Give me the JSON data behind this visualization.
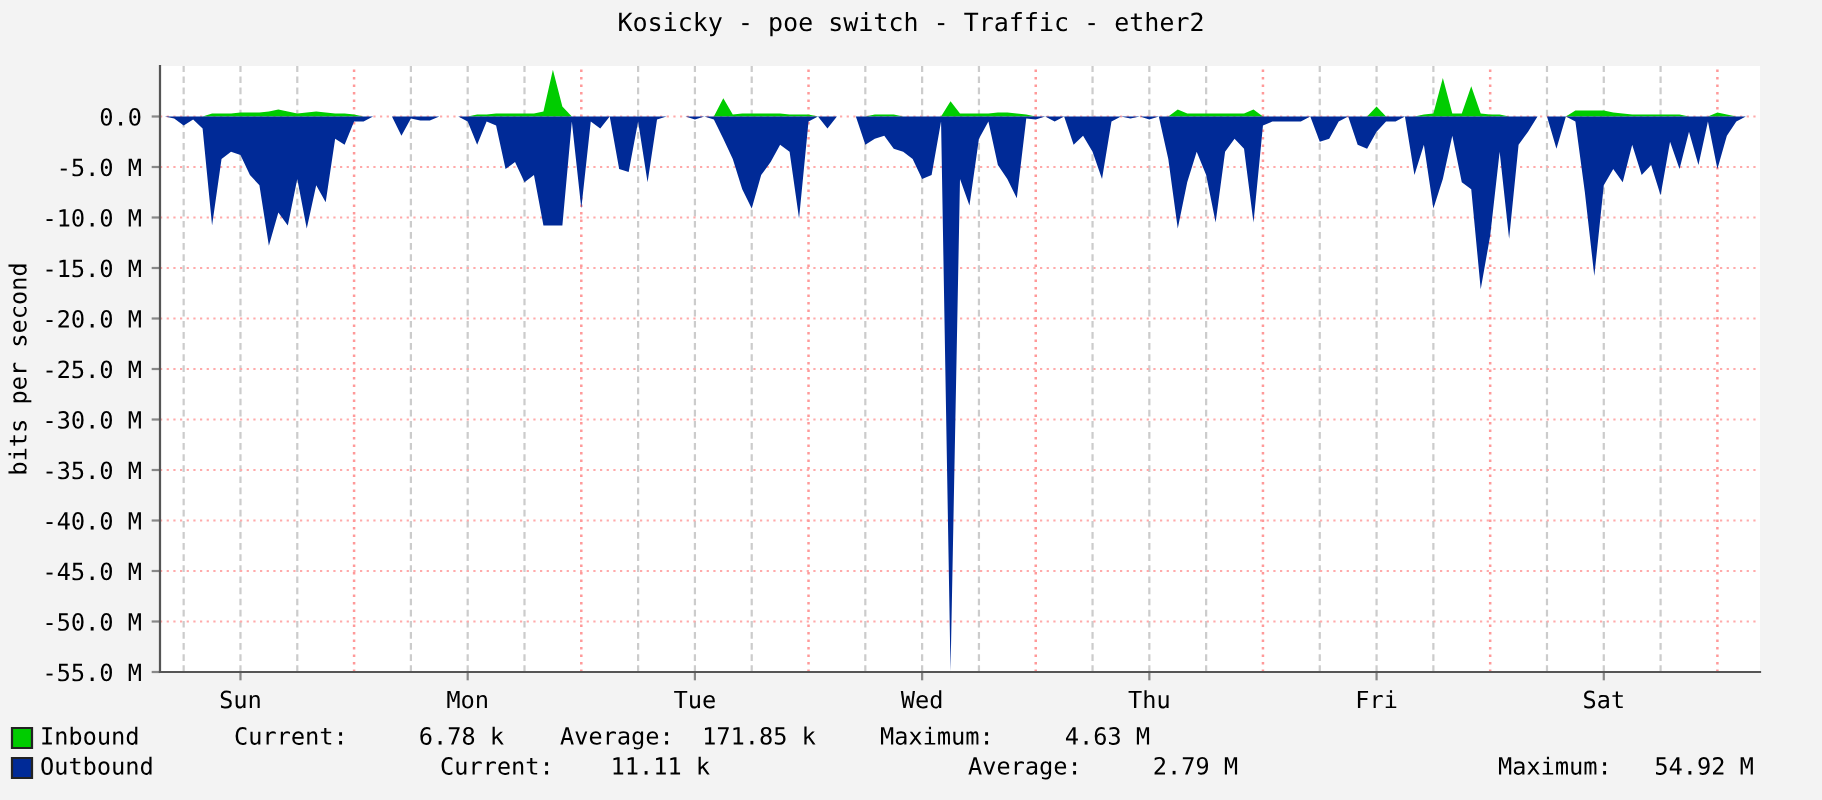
{
  "chart_data": {
    "type": "area",
    "title": "Kosicky - poe switch - Traffic - ether2",
    "ylabel": "bits per second",
    "categories": [
      null,
      null,
      null,
      null,
      null,
      null,
      null,
      null,
      "Sun",
      null,
      null,
      null,
      null,
      null,
      null,
      null,
      null,
      null,
      null,
      null,
      null,
      null,
      null,
      null,
      null,
      null,
      null,
      null,
      null,
      null,
      null,
      null,
      "Mon",
      null,
      null,
      null,
      null,
      null,
      null,
      null,
      null,
      null,
      null,
      null,
      null,
      null,
      null,
      null,
      null,
      null,
      null,
      null,
      null,
      null,
      null,
      null,
      "Tue",
      null,
      null,
      null,
      null,
      null,
      null,
      null,
      null,
      null,
      null,
      null,
      null,
      null,
      null,
      null,
      null,
      null,
      null,
      null,
      null,
      null,
      null,
      null,
      "Wed",
      null,
      null,
      null,
      null,
      null,
      null,
      null,
      null,
      null,
      null,
      null,
      null,
      null,
      null,
      null,
      null,
      null,
      null,
      null,
      null,
      null,
      null,
      null,
      "Thu",
      null,
      null,
      null,
      null,
      null,
      null,
      null,
      null,
      null,
      null,
      null,
      null,
      null,
      null,
      null,
      null,
      null,
      null,
      null,
      null,
      null,
      null,
      null,
      "Fri",
      null,
      null,
      null,
      null,
      null,
      null,
      null,
      null,
      null,
      null,
      null,
      null,
      null,
      null,
      null,
      null,
      null,
      null,
      null,
      null,
      null,
      null,
      null,
      "Sat",
      null,
      null,
      null,
      null,
      null,
      null,
      null,
      null,
      null,
      null,
      null,
      null,
      null,
      null,
      null,
      null
    ],
    "ylim": [
      -55,
      5
    ],
    "yticks": [
      {
        "value": 0,
        "label": "0.0"
      },
      {
        "value": -5,
        "label": "-5.0 M"
      },
      {
        "value": -10,
        "label": "-10.0 M"
      },
      {
        "value": -15,
        "label": "-15.0 M"
      },
      {
        "value": -20,
        "label": "-20.0 M"
      },
      {
        "value": -25,
        "label": "-25.0 M"
      },
      {
        "value": -30,
        "label": "-30.0 M"
      },
      {
        "value": -35,
        "label": "-35.0 M"
      },
      {
        "value": -40,
        "label": "-40.0 M"
      },
      {
        "value": -45,
        "label": "-45.0 M"
      },
      {
        "value": -50,
        "label": "-50.0 M"
      },
      {
        "value": -55,
        "label": "-55.0 M"
      }
    ],
    "grid": true,
    "legend": "bottom",
    "annotations": [
      "Current:     6.78 k",
      "Average:  171.85 k",
      "Maximum:     4.63 M",
      "Current:    11.11 k",
      "Average:     2.79 M",
      "Maximum:   54.92 M"
    ],
    "series": [
      {
        "name": "Inbound",
        "color": "#00cc00",
        "values": [
          0,
          0,
          0,
          0,
          0,
          0.3,
          0.3,
          0.3,
          0.4,
          0.4,
          0.4,
          0.5,
          0.7,
          0.5,
          0.3,
          0.4,
          0.5,
          0.4,
          0.3,
          0.3,
          0.2,
          0,
          0,
          0,
          0,
          0,
          0,
          0,
          0,
          0,
          0,
          0,
          0,
          0.2,
          0.2,
          0.3,
          0.3,
          0.3,
          0.3,
          0.3,
          0.5,
          4.63,
          1.0,
          0,
          0,
          0,
          0,
          0,
          0,
          0,
          0,
          0,
          0,
          0,
          0,
          0,
          0,
          0,
          0,
          1.8,
          0.2,
          0.3,
          0.3,
          0.3,
          0.3,
          0.3,
          0.2,
          0.2,
          0.2,
          0,
          0,
          0,
          0,
          0,
          0,
          0.2,
          0.2,
          0.2,
          0,
          0,
          0,
          0,
          0,
          1.5,
          0.3,
          0.3,
          0.3,
          0.3,
          0.4,
          0.4,
          0.3,
          0.2,
          0,
          0,
          0,
          0,
          0,
          0,
          0,
          0,
          0,
          0,
          0,
          0,
          0,
          0,
          0,
          0.7,
          0.3,
          0.3,
          0.3,
          0.3,
          0.3,
          0.3,
          0.3,
          0.7,
          0,
          0,
          0,
          0,
          0,
          0,
          0,
          0,
          0,
          0,
          0,
          0,
          1.0,
          0,
          0,
          0,
          0,
          0.2,
          0.3,
          3.8,
          0.3,
          0.3,
          3.0,
          0.3,
          0.2,
          0.2,
          0,
          0,
          0,
          0,
          0,
          0,
          0,
          0.6,
          0.6,
          0.6,
          0.6,
          0.4,
          0.3,
          0.2,
          0.2,
          0.2,
          0.2,
          0.2,
          0.2,
          0,
          0,
          0,
          0.4,
          0.2,
          0,
          0,
          0
        ]
      },
      {
        "name": "Outbound",
        "color": "#002a97",
        "values": [
          0,
          -0.2,
          -0.9,
          -0.3,
          -1.2,
          -10.8,
          -4.2,
          -3.5,
          -3.8,
          -5.8,
          -6.8,
          -12.8,
          -9.5,
          -10.8,
          -6.2,
          -11.1,
          -6.8,
          -8.5,
          -2.2,
          -2.8,
          -0.5,
          -0.5,
          0,
          0,
          0,
          -1.9,
          -0.2,
          -0.4,
          -0.4,
          0,
          0,
          0,
          -0.5,
          -2.8,
          -0.5,
          -0.9,
          -5.2,
          -4.5,
          -6.5,
          -5.8,
          -10.8,
          -10.8,
          -10.8,
          -0.5,
          -9.1,
          -0.5,
          -1.2,
          0,
          -5.2,
          -5.5,
          -0.5,
          -6.5,
          -0.3,
          0,
          0,
          0,
          -0.3,
          0,
          -0.3,
          -2.2,
          -4.2,
          -7.2,
          -9.1,
          -5.8,
          -4.5,
          -2.8,
          -3.5,
          -10.1,
          -0.5,
          0,
          -1.2,
          0,
          0,
          0,
          -2.8,
          -2.2,
          -1.9,
          -3.2,
          -3.5,
          -4.2,
          -6.2,
          -5.8,
          -0.5,
          -54.92,
          -6.2,
          -8.8,
          -2.2,
          -0.5,
          -4.8,
          -6.2,
          -8.1,
          -0.2,
          -0.3,
          0,
          -0.5,
          0,
          -2.8,
          -1.9,
          -3.5,
          -6.2,
          -0.5,
          0,
          -0.2,
          0,
          -0.3,
          0,
          -4.2,
          -11.1,
          -6.5,
          -3.5,
          -5.8,
          -10.5,
          -3.5,
          -2.2,
          -3.2,
          -10.5,
          -0.9,
          -0.5,
          -0.5,
          -0.5,
          -0.5,
          0,
          -2.5,
          -2.2,
          -0.5,
          0,
          -2.8,
          -3.2,
          -1.5,
          -0.5,
          -0.5,
          0,
          -5.8,
          -2.8,
          -9.1,
          -6.2,
          -1.9,
          -6.5,
          -7.2,
          -17.1,
          -11.8,
          -3.5,
          -12.1,
          -2.8,
          -1.5,
          0,
          0,
          -3.2,
          0,
          -0.5,
          -7.5,
          -15.8,
          -6.8,
          -5.2,
          -6.5,
          -2.8,
          -5.8,
          -4.8,
          -7.8,
          -2.5,
          -5.2,
          -1.5,
          -4.8,
          -0.5,
          -5.2,
          -1.9,
          -0.5,
          0,
          0
        ]
      }
    ]
  }
}
